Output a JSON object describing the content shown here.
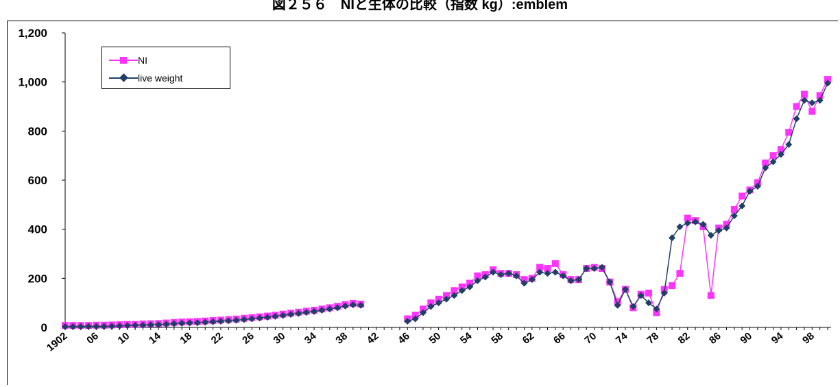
{
  "chart_title": "図２５６　NIと生体の比較（指数 kg）:emblem",
  "colors": {
    "ni": "#ff33ff",
    "live_weight": "#1f3f66"
  },
  "chart_data": {
    "type": "line",
    "title": "図２５６　NIと生体の比較（指数 kg）:emblem",
    "xlabel": "",
    "ylabel": "",
    "ylim": [
      0,
      1200
    ],
    "yticks": [
      "0",
      "200",
      "400",
      "600",
      "800",
      "1,000",
      "1,200"
    ],
    "x": [
      1902,
      1903,
      1904,
      1905,
      1906,
      1907,
      1908,
      1909,
      1910,
      1911,
      1912,
      1913,
      1914,
      1915,
      1916,
      1917,
      1918,
      1919,
      1920,
      1921,
      1922,
      1923,
      1924,
      1925,
      1926,
      1927,
      1928,
      1929,
      1930,
      1931,
      1932,
      1933,
      1934,
      1935,
      1936,
      1937,
      1938,
      1939,
      1940,
      1941,
      1942,
      1943,
      1944,
      1945,
      1946,
      1947,
      1948,
      1949,
      1950,
      1951,
      1952,
      1953,
      1954,
      1955,
      1956,
      1957,
      1958,
      1959,
      1960,
      1961,
      1962,
      1963,
      1964,
      1965,
      1966,
      1967,
      1968,
      1969,
      1970,
      1971,
      1972,
      1973,
      1974,
      1975,
      1976,
      1977,
      1978,
      1979,
      1980,
      1981,
      1982,
      1983,
      1984,
      1985,
      1986,
      1987,
      1988,
      1989,
      1990,
      1991,
      1992,
      1993,
      1994,
      1995,
      1996,
      1997,
      1998,
      1999,
      2000
    ],
    "xtick_labels": [
      "1902",
      "06",
      "10",
      "14",
      "18",
      "22",
      "26",
      "30",
      "34",
      "38",
      "42",
      "46",
      "50",
      "54",
      "58",
      "62",
      "66",
      "70",
      "74",
      "78",
      "82",
      "86",
      "90",
      "94",
      "98"
    ],
    "legend_position": "top-left",
    "series": [
      {
        "name": "NI",
        "marker": "square",
        "values": [
          8,
          8,
          8,
          8,
          9,
          9,
          10,
          11,
          12,
          12,
          14,
          15,
          16,
          18,
          20,
          22,
          23,
          24,
          26,
          28,
          30,
          32,
          34,
          37,
          40,
          43,
          46,
          50,
          54,
          58,
          62,
          66,
          70,
          75,
          80,
          86,
          93,
          98,
          95,
          null,
          null,
          null,
          null,
          null,
          35,
          50,
          75,
          100,
          115,
          130,
          150,
          165,
          180,
          210,
          215,
          235,
          220,
          220,
          215,
          195,
          200,
          245,
          240,
          260,
          215,
          195,
          195,
          240,
          245,
          240,
          185,
          105,
          155,
          80,
          135,
          140,
          60,
          155,
          170,
          220,
          445,
          435,
          410,
          130,
          405,
          420,
          480,
          535,
          560,
          590,
          670,
          700,
          725,
          795,
          900,
          950,
          880,
          945,
          1010
        ]
      },
      {
        "name": "live weight",
        "marker": "diamond",
        "values": [
          3,
          3,
          3,
          4,
          4,
          4,
          5,
          6,
          7,
          8,
          9,
          10,
          11,
          13,
          15,
          17,
          18,
          19,
          21,
          23,
          25,
          27,
          29,
          32,
          35,
          38,
          41,
          45,
          49,
          53,
          57,
          61,
          65,
          70,
          75,
          80,
          87,
          92,
          90,
          null,
          null,
          null,
          null,
          null,
          25,
          35,
          60,
          85,
          100,
          115,
          130,
          150,
          165,
          190,
          205,
          225,
          215,
          220,
          210,
          180,
          195,
          225,
          220,
          225,
          210,
          190,
          195,
          240,
          240,
          245,
          185,
          90,
          155,
          85,
          130,
          100,
          75,
          140,
          365,
          410,
          425,
          430,
          420,
          375,
          395,
          405,
          455,
          495,
          555,
          575,
          650,
          675,
          705,
          745,
          850,
          925,
          915,
          925,
          995
        ]
      }
    ]
  }
}
